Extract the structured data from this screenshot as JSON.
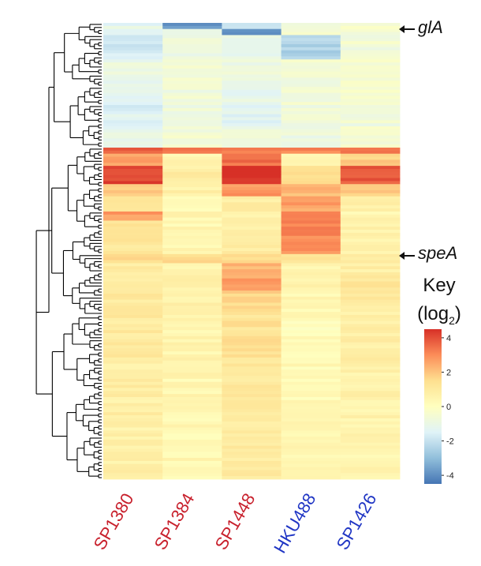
{
  "chart_data": {
    "type": "heatmap",
    "title": "",
    "columns": [
      {
        "label": "SP1380",
        "color": "#c8202c"
      },
      {
        "label": "SP1384",
        "color": "#c8202c"
      },
      {
        "label": "SP1448",
        "color": "#c8202c"
      },
      {
        "label": "HKU488",
        "color": "#1f35c4"
      },
      {
        "label": "SP1426",
        "color": "#1f35c4"
      }
    ],
    "row_count": 150,
    "highlighted_genes": [
      {
        "label": "glA",
        "row_index": 2
      },
      {
        "label": "speA",
        "row_index": 76
      }
    ],
    "color_key": {
      "title": "Key",
      "unit_text": "(log",
      "unit_sub": "2",
      "unit_close": ")",
      "ticks": [
        4,
        2,
        0,
        -2,
        -4
      ],
      "range": [
        -4.5,
        4.5
      ],
      "colormap": [
        "#4575b4",
        "#91bfdb",
        "#e0f3f8",
        "#ffffbf",
        "#fee090",
        "#fc8d59",
        "#d73027"
      ]
    },
    "row_blocks": [
      {
        "rows": [
          0,
          1
        ],
        "values": [
          -1.2,
          -3.8,
          -1.6,
          -0.6,
          -0.4
        ]
      },
      {
        "rows": [
          2,
          3
        ],
        "values": [
          -1.4,
          -1.0,
          -3.9,
          -0.6,
          -0.4
        ]
      },
      {
        "rows": [
          4,
          11
        ],
        "values": [
          -1.8,
          -0.8,
          -1.2,
          -2.4,
          -0.6
        ]
      },
      {
        "rows": [
          12,
          17
        ],
        "values": [
          -1.0,
          -0.6,
          -0.9,
          -0.4,
          -0.3
        ]
      },
      {
        "rows": [
          18,
          25
        ],
        "values": [
          -1.2,
          -0.7,
          -1.1,
          -0.6,
          -0.5
        ]
      },
      {
        "rows": [
          26,
          33
        ],
        "values": [
          -1.5,
          -0.8,
          -1.3,
          -0.7,
          -0.7
        ]
      },
      {
        "rows": [
          34,
          40
        ],
        "values": [
          -1.2,
          -0.6,
          -0.8,
          -0.9,
          -0.5
        ]
      },
      {
        "rows": [
          41,
          42
        ],
        "values": [
          3.6,
          3.2,
          3.4,
          3.2,
          3.4
        ]
      },
      {
        "rows": [
          43,
          46
        ],
        "values": [
          2.6,
          0.5,
          3.4,
          0.6,
          1.8
        ]
      },
      {
        "rows": [
          47,
          52
        ],
        "values": [
          4.2,
          0.8,
          4.4,
          1.5,
          3.9
        ]
      },
      {
        "rows": [
          53,
          56
        ],
        "values": [
          1.8,
          0.7,
          2.8,
          2.2,
          2.0
        ]
      },
      {
        "rows": [
          57,
          61
        ],
        "values": [
          1.4,
          0.2,
          0.8,
          2.6,
          0.6
        ]
      },
      {
        "rows": [
          62,
          64
        ],
        "values": [
          2.8,
          0.4,
          0.6,
          2.9,
          0.5
        ]
      },
      {
        "rows": [
          65,
          72
        ],
        "values": [
          1.4,
          0.4,
          0.7,
          3.1,
          0.6
        ]
      },
      {
        "rows": [
          73,
          75
        ],
        "values": [
          1.2,
          0.5,
          0.8,
          2.8,
          0.6
        ]
      },
      {
        "rows": [
          76,
          78
        ],
        "values": [
          1.6,
          1.4,
          1.6,
          1.2,
          1.0
        ]
      },
      {
        "rows": [
          79,
          81
        ],
        "values": [
          1.0,
          0.6,
          2.2,
          0.6,
          0.8
        ]
      },
      {
        "rows": [
          82,
          87
        ],
        "values": [
          1.0,
          0.7,
          2.6,
          0.5,
          1.2
        ]
      },
      {
        "rows": [
          88,
          94
        ],
        "values": [
          1.0,
          0.6,
          1.6,
          0.4,
          1.0
        ]
      },
      {
        "rows": [
          95,
          110
        ],
        "values": [
          1.0,
          0.5,
          1.3,
          0.2,
          0.8
        ]
      },
      {
        "rows": [
          111,
          130
        ],
        "values": [
          0.8,
          0.4,
          1.1,
          0.3,
          0.6
        ]
      },
      {
        "rows": [
          131,
          149
        ],
        "values": [
          0.7,
          0.4,
          1.0,
          0.3,
          0.5
        ]
      }
    ]
  }
}
